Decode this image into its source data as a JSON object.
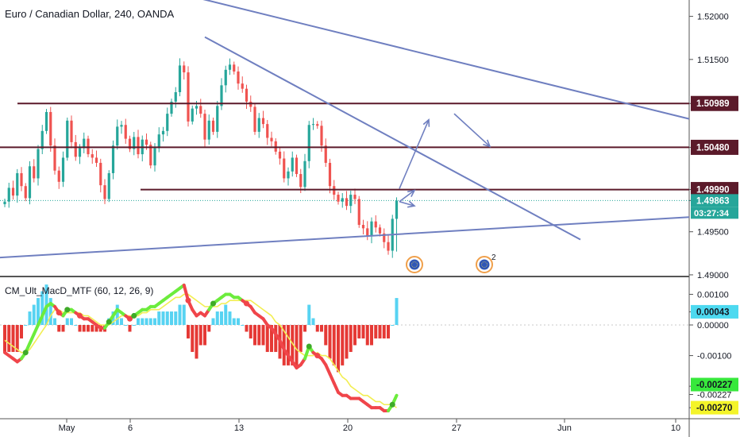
{
  "header": {
    "title": "Euro / Canadian Dollar, 240, OANDA"
  },
  "indicator": {
    "title": "CM_Ult_MacD_MTF (60, 12, 26, 9)"
  },
  "colors": {
    "bull": "#26a69a",
    "bear": "#ef5350",
    "trendline": "#6f7fc0",
    "level": "#5b1a2a",
    "macd_up": "#6cec3c",
    "macd_down": "#f0454a",
    "signal": "#f2ee52",
    "hist_pos": "#57d3f2",
    "hist_neg": "#e53935"
  },
  "chart_data": [
    {
      "type": "candlestick",
      "title": "Euro / Canadian Dollar, 240, OANDA",
      "x_ticks": [
        "May",
        "6",
        "13",
        "20",
        "27",
        "Jun",
        "10"
      ],
      "y_ticks": [
        "1.52000",
        "1.51500",
        "1.50989",
        "1.50480",
        "1.49990",
        "1.49863",
        "1.49500",
        "1.49000"
      ],
      "ylim": [
        1.4899,
        1.5219
      ],
      "horizontal_levels": [
        {
          "price": 1.50989,
          "label": "1.50989"
        },
        {
          "price": 1.5048,
          "label": "1.50480"
        },
        {
          "price": 1.4999,
          "label": "1.49990"
        }
      ],
      "last_price": {
        "price": 1.49863,
        "label": "1.49863",
        "countdown": "03:27:34"
      },
      "closes": [
        1.4985,
        1.5001,
        1.4992,
        1.5018,
        1.5003,
        1.4989,
        1.5026,
        1.5012,
        1.5046,
        1.5067,
        1.5089,
        1.505,
        1.5021,
        1.5008,
        1.5036,
        1.5079,
        1.5054,
        1.5037,
        1.5047,
        1.5058,
        1.504,
        1.5036,
        1.503,
        1.5004,
        1.4988,
        1.5018,
        1.505,
        1.5072,
        1.5074,
        1.5058,
        1.5046,
        1.506,
        1.504,
        1.5057,
        1.5051,
        1.5027,
        1.5047,
        1.5063,
        1.5067,
        1.5087,
        1.5101,
        1.5112,
        1.5143,
        1.5135,
        1.5078,
        1.5093,
        1.5096,
        1.5087,
        1.5057,
        1.5079,
        1.5066,
        1.5096,
        1.512,
        1.5138,
        1.5144,
        1.5136,
        1.5122,
        1.5116,
        1.5101,
        1.5095,
        1.5066,
        1.5082,
        1.5075,
        1.5059,
        1.5055,
        1.5043,
        1.5035,
        1.5012,
        1.502,
        1.5036,
        1.5017,
        1.5002,
        1.5032,
        1.5074,
        1.5075,
        1.5073,
        1.505,
        1.503,
        1.5003,
        1.4993,
        1.4985,
        1.4989,
        1.498,
        1.4993,
        1.4988,
        1.4958,
        1.4954,
        1.4945,
        1.4962,
        1.4955,
        1.4948,
        1.4938,
        1.4928,
        1.4965,
        1.4986
      ],
      "current_candle": {
        "high": 1.499,
        "low": 1.4927
      },
      "trendlines": [
        {
          "from": [
            "Apr 28",
            1.5245
          ],
          "to": [
            "Jun 11",
            1.5081
          ]
        },
        {
          "from": [
            "May 10",
            1.5176
          ],
          "to": [
            "May 30",
            1.4941
          ]
        },
        {
          "from": [
            "Apr 26",
            1.492
          ],
          "to": [
            "Jun 11",
            1.4967
          ]
        }
      ],
      "arrows": [
        {
          "from": [
            "May 23",
            1.4985
          ],
          "to": [
            "May 24",
            1.4998
          ]
        },
        {
          "from": [
            "May 23",
            1.5
          ],
          "to": [
            "May 25",
            1.508
          ]
        },
        {
          "from": [
            "May 23",
            1.4985
          ],
          "to": [
            "May 24",
            1.498
          ]
        },
        {
          "from": [
            "May 26",
            1.5087
          ],
          "to": [
            "May 28",
            1.5049
          ]
        }
      ],
      "event_markers": [
        {
          "date": "May 24",
          "count": ""
        },
        {
          "date": "May 27",
          "count": "2"
        }
      ]
    },
    {
      "type": "line",
      "title": "CM_Ult_MacD_MTF (60, 12, 26, 9)",
      "y_ticks": [
        "0.00100",
        "0.00043",
        "0.00000",
        "-0.00100",
        "-0.00200",
        "-0.00227",
        "-0.00270"
      ],
      "ylim": [
        -0.00306,
        0.00153
      ],
      "value_tags": [
        {
          "value": 0.00043,
          "label": "0.00043"
        },
        {
          "value": -0.00227,
          "label": "-0.00227"
        },
        {
          "value": -0.0027,
          "label": "-0.00270"
        }
      ],
      "macd": [
        -0.0009,
        -0.001,
        -0.0011,
        -0.0012,
        -0.0011,
        -0.0009,
        -0.0006,
        -0.0003,
        0.0,
        0.0003,
        0.0006,
        0.0007,
        0.0006,
        0.0004,
        0.0003,
        0.0005,
        0.0005,
        0.0004,
        0.0003,
        0.0002,
        0.0002,
        0.0001,
        0.0,
        -0.0001,
        -0.0001,
        0.0001,
        0.0003,
        0.0005,
        0.0004,
        0.0003,
        0.0002,
        0.0003,
        0.0004,
        0.0005,
        0.0005,
        0.0006,
        0.0006,
        0.0007,
        0.0008,
        0.0009,
        0.001,
        0.0011,
        0.0012,
        0.0013,
        0.0008,
        0.0005,
        0.0003,
        0.0004,
        0.0003,
        0.0005,
        0.0007,
        0.0008,
        0.0009,
        0.001,
        0.001,
        0.0009,
        0.0009,
        0.0008,
        0.0007,
        0.0006,
        0.0004,
        0.0003,
        0.0002,
        0.0,
        -0.0001,
        -0.0003,
        -0.0005,
        -0.0008,
        -0.001,
        -0.0012,
        -0.0014,
        -0.0013,
        -0.0011,
        -0.0007,
        -0.0009,
        -0.001,
        -0.0011,
        -0.0013,
        -0.0016,
        -0.0019,
        -0.0022,
        -0.0023,
        -0.0023,
        -0.0024,
        -0.0024,
        -0.0024,
        -0.0025,
        -0.0026,
        -0.0027,
        -0.0027,
        -0.0027,
        -0.0028,
        -0.0028,
        -0.0026,
        -0.0023
      ],
      "signal": [
        -0.0005,
        -0.0006,
        -0.0007,
        -0.0008,
        -0.0009,
        -0.0009,
        -0.0008,
        -0.0006,
        -0.0004,
        -0.0002,
        0.0,
        0.0003,
        0.0005,
        0.0005,
        0.0004,
        0.0004,
        0.0004,
        0.0004,
        0.0004,
        0.0003,
        0.0003,
        0.0002,
        0.0001,
        0.0,
        -0.0,
        0.0,
        0.0001,
        0.0002,
        0.0003,
        0.0003,
        0.0003,
        0.0003,
        0.0003,
        0.0004,
        0.0004,
        0.0005,
        0.0005,
        0.0005,
        0.0006,
        0.0007,
        0.0008,
        0.0009,
        0.0009,
        0.001,
        0.001,
        0.0009,
        0.0008,
        0.0007,
        0.0006,
        0.0006,
        0.0006,
        0.0006,
        0.0007,
        0.0007,
        0.0008,
        0.0008,
        0.0008,
        0.0008,
        0.0008,
        0.0008,
        0.0007,
        0.0006,
        0.0005,
        0.0004,
        0.0003,
        0.0001,
        -0.0,
        -0.0002,
        -0.0004,
        -0.0006,
        -0.0008,
        -0.0009,
        -0.001,
        -0.001,
        -0.001,
        -0.0009,
        -0.001,
        -0.001,
        -0.0011,
        -0.0013,
        -0.0015,
        -0.0017,
        -0.0018,
        -0.002,
        -0.0021,
        -0.0022,
        -0.0023,
        -0.0023,
        -0.0024,
        -0.0025,
        -0.0025,
        -0.0026,
        -0.0026,
        -0.0026,
        -0.0027
      ]
    }
  ]
}
